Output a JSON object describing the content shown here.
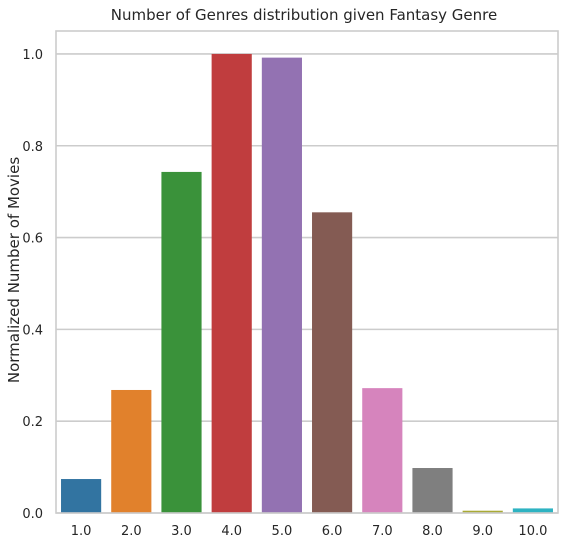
{
  "chart_data": {
    "type": "bar",
    "title": "Number of Genres distribution given Fantasy Genre",
    "xlabel": "",
    "ylabel": "Normalized Number of Movies",
    "categories": [
      "1.0",
      "2.0",
      "3.0",
      "4.0",
      "5.0",
      "6.0",
      "7.0",
      "8.0",
      "9.0",
      "10.0"
    ],
    "values": [
      0.074,
      0.268,
      0.743,
      1.0,
      0.992,
      0.655,
      0.272,
      0.098,
      0.005,
      0.01
    ],
    "colors": [
      "#3274a1",
      "#e1812c",
      "#3a923a",
      "#c03d3e",
      "#9372b2",
      "#845b53",
      "#d684bd",
      "#7f7f7f",
      "#a9aa35",
      "#2eb3c2"
    ],
    "ylim": [
      0,
      1.05
    ],
    "yticks": [
      0.0,
      0.2,
      0.4,
      0.6,
      0.8,
      1.0
    ],
    "ytick_labels": [
      "0.0",
      "0.2",
      "0.4",
      "0.6",
      "0.8",
      "1.0"
    ],
    "grid": true,
    "grid_axis": "y"
  }
}
